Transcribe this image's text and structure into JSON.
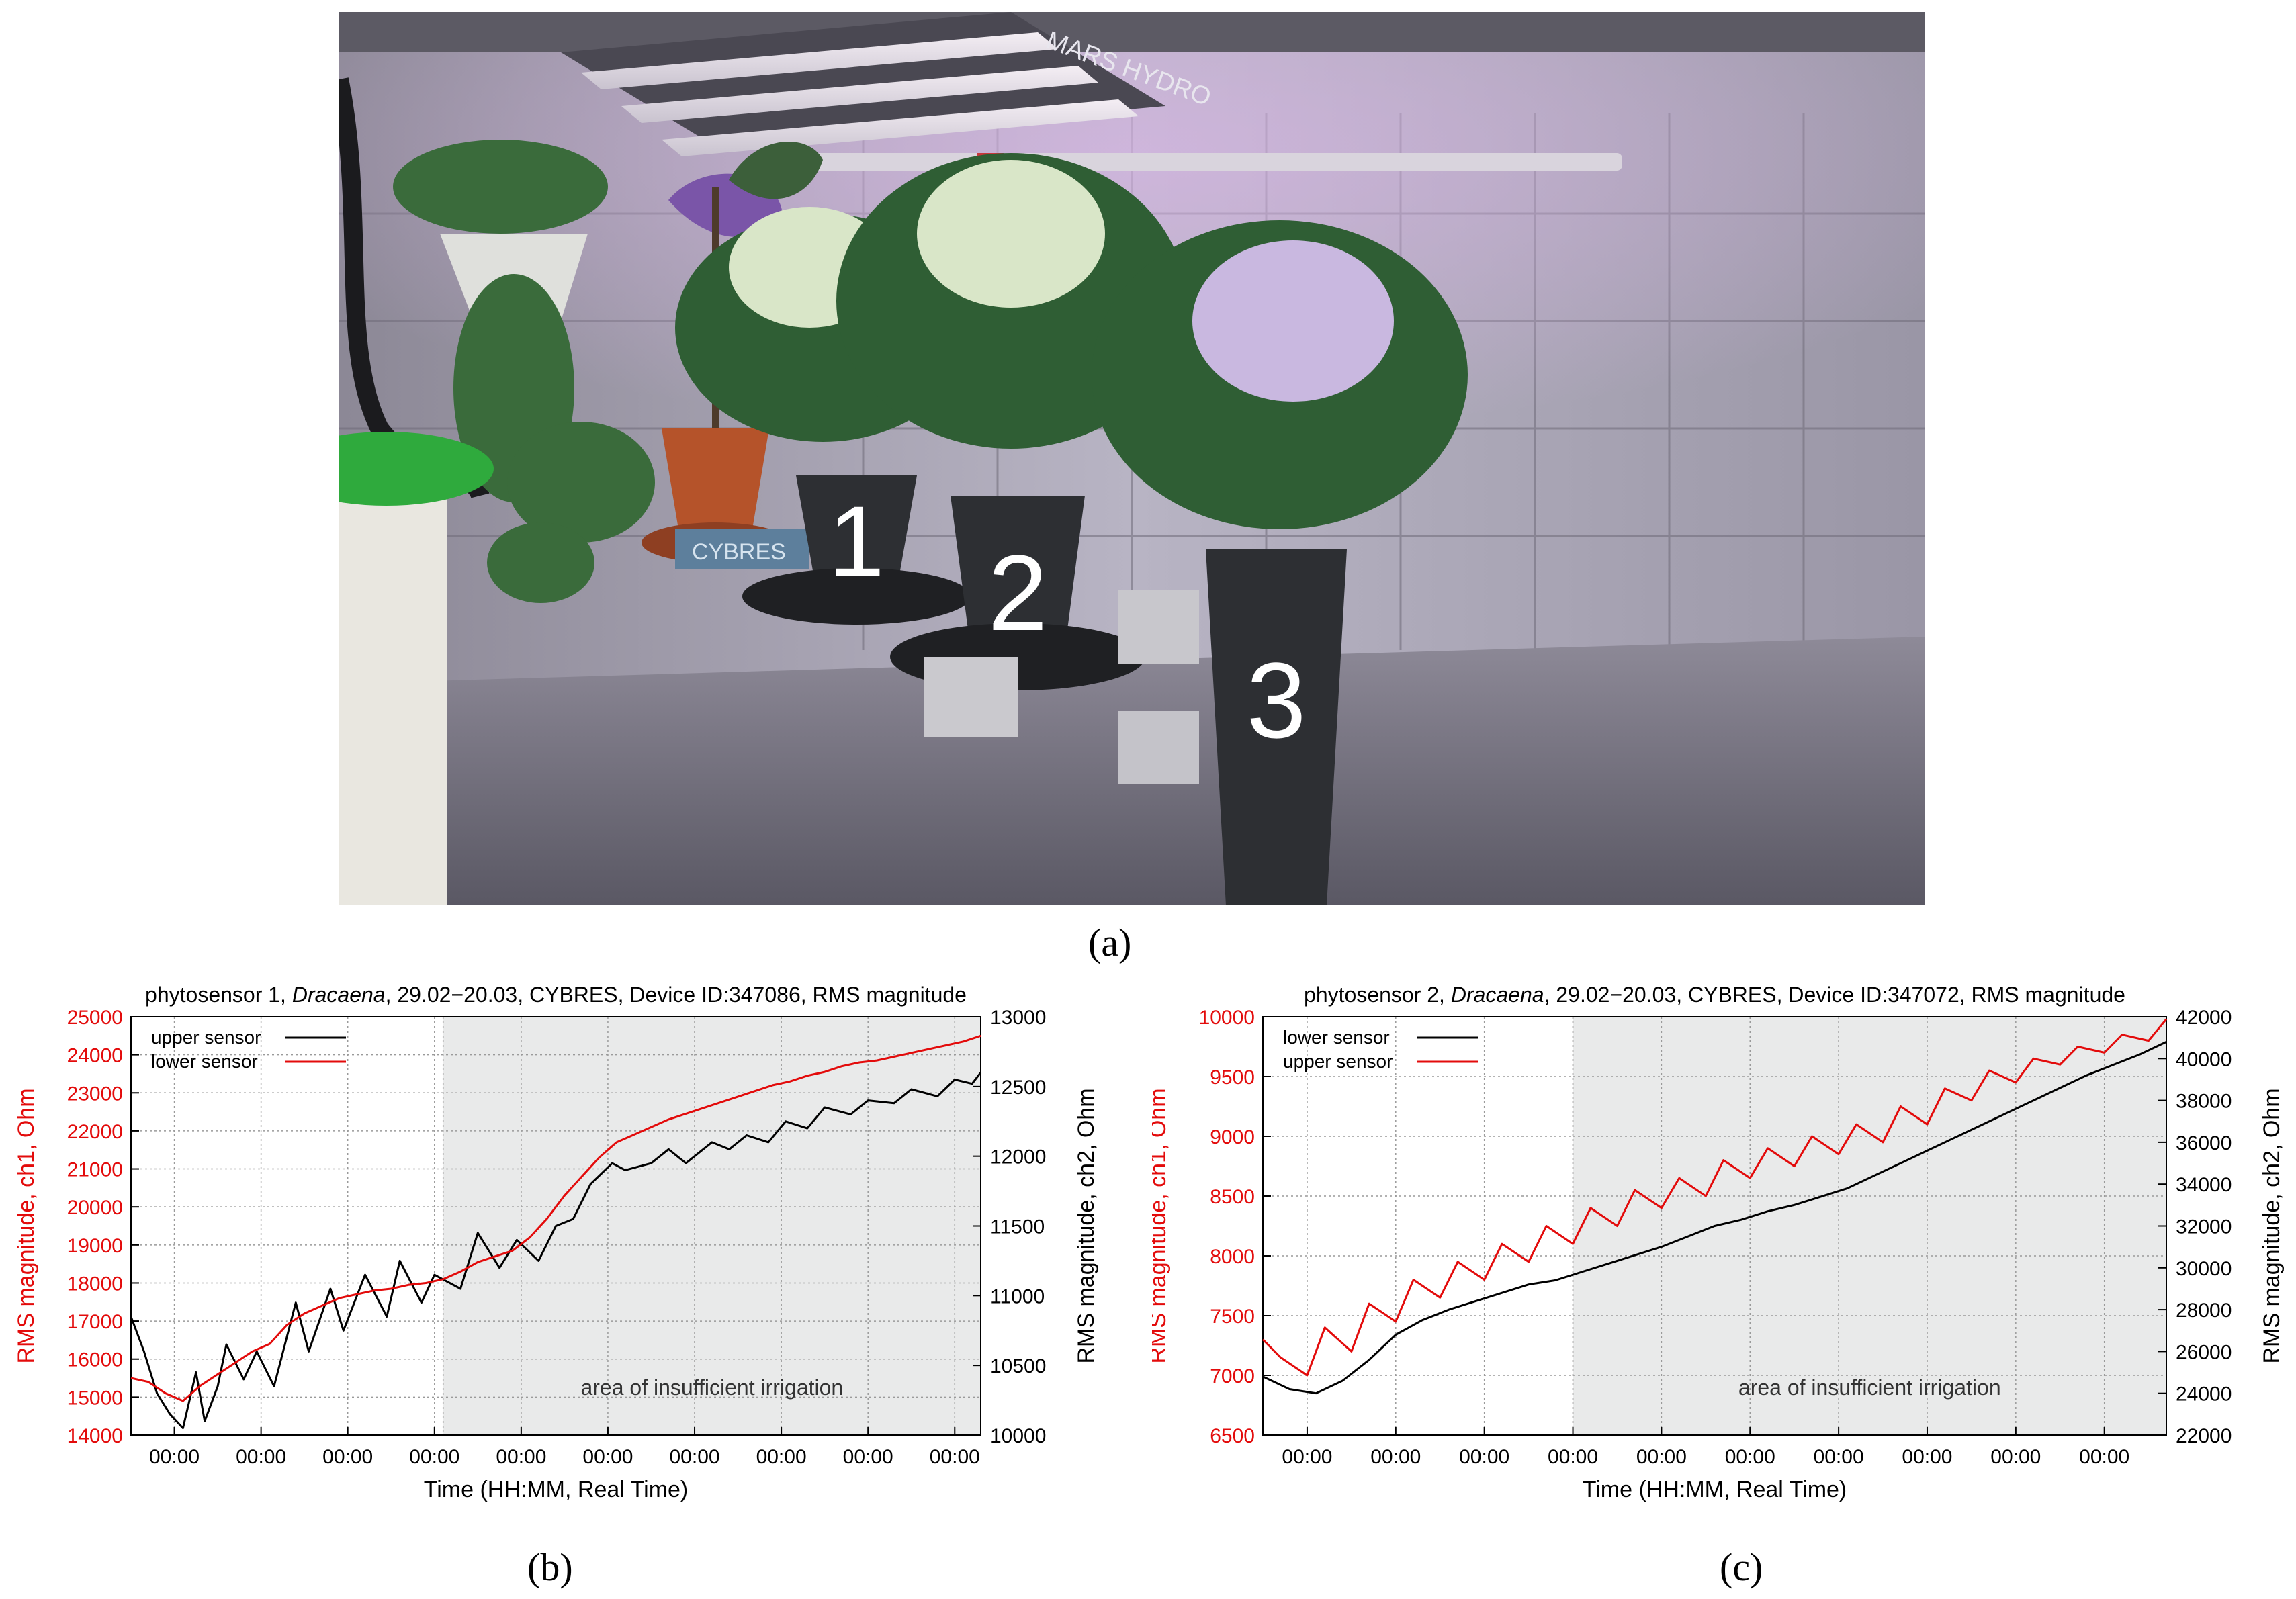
{
  "figure": {
    "photo": {
      "labels": [
        "1",
        "2",
        "3"
      ],
      "device_text": "CYBRES",
      "lamp_brand": "MARS HYDRO",
      "colors": {
        "wall": "#9c98a8",
        "floor": "#6f6c78",
        "leaf": "#2f5e34",
        "leaf_light": "#d9e6c8",
        "pot_dark": "#2d2f33",
        "pot_clay": "#b5532a",
        "bucket_lid": "#2faa3d"
      }
    },
    "captions": {
      "a": "(a)",
      "b": "(b)",
      "c": "(c)"
    }
  },
  "chart_data": [
    {
      "type": "line",
      "title_prefix": "phytosensor 1, ",
      "title_italic": "Dracaena",
      "title_suffix": ", 29.02−20.03, CYBRES, Device ID:347086, RMS magnitude",
      "xlabel": "Time (HH:MM, Real Time)",
      "ylabel_left": "RMS magnitude, ch1, Ohm",
      "ylabel_right": "RMS magnitude, ch2, Ohm",
      "x_tick_labels": [
        "00:00",
        "00:00",
        "00:00",
        "00:00",
        "00:00",
        "00:00",
        "00:00",
        "00:00",
        "00:00",
        "00:00"
      ],
      "x_ticks": [
        0.5,
        1.5,
        2.5,
        3.5,
        4.5,
        5.5,
        6.5,
        7.5,
        8.5,
        9.5
      ],
      "xlim": [
        0,
        9.8
      ],
      "ylim_left": [
        14000,
        25000
      ],
      "yticks_left": [
        14000,
        15000,
        16000,
        17000,
        18000,
        19000,
        20000,
        21000,
        22000,
        23000,
        24000,
        25000
      ],
      "ylim_right": [
        10000,
        13000
      ],
      "yticks_right": [
        10000,
        10500,
        11000,
        11500,
        12000,
        12500,
        13000
      ],
      "shaded_region": {
        "from": 3.6,
        "to": 9.8,
        "label": "area of insufficient irrigation",
        "color": "#e9eaea"
      },
      "grid": true,
      "legend_position": "top-left",
      "series": [
        {
          "name": "upper sensor",
          "axis": "right",
          "color": "#000000",
          "x": [
            0.0,
            0.15,
            0.3,
            0.45,
            0.6,
            0.75,
            0.85,
            1.0,
            1.1,
            1.3,
            1.45,
            1.65,
            1.9,
            2.05,
            2.3,
            2.45,
            2.7,
            2.95,
            3.1,
            3.35,
            3.5,
            3.8,
            4.0,
            4.25,
            4.45,
            4.7,
            4.9,
            5.1,
            5.3,
            5.55,
            5.7,
            6.0,
            6.2,
            6.4,
            6.7,
            6.9,
            7.1,
            7.35,
            7.55,
            7.8,
            8.0,
            8.3,
            8.5,
            8.8,
            9.0,
            9.3,
            9.5,
            9.7,
            9.8
          ],
          "values": [
            10850,
            10600,
            10300,
            10150,
            10050,
            10450,
            10100,
            10350,
            10650,
            10400,
            10600,
            10350,
            10950,
            10600,
            11050,
            10750,
            11150,
            10850,
            11250,
            10950,
            11150,
            11050,
            11450,
            11200,
            11400,
            11250,
            11500,
            11550,
            11800,
            11950,
            11900,
            11950,
            12050,
            11950,
            12100,
            12050,
            12150,
            12100,
            12250,
            12200,
            12350,
            12300,
            12400,
            12380,
            12480,
            12430,
            12550,
            12520,
            12600
          ]
        },
        {
          "name": "lower sensor",
          "axis": "left",
          "color": "#e30b0b",
          "x": [
            0.0,
            0.2,
            0.4,
            0.6,
            0.8,
            1.0,
            1.2,
            1.4,
            1.6,
            1.8,
            2.0,
            2.2,
            2.4,
            2.6,
            2.8,
            3.0,
            3.2,
            3.4,
            3.6,
            3.8,
            4.0,
            4.2,
            4.4,
            4.6,
            4.8,
            5.0,
            5.2,
            5.4,
            5.6,
            5.8,
            6.0,
            6.2,
            6.4,
            6.6,
            6.8,
            7.0,
            7.2,
            7.4,
            7.6,
            7.8,
            8.0,
            8.2,
            8.4,
            8.6,
            8.8,
            9.0,
            9.2,
            9.4,
            9.6,
            9.8
          ],
          "values": [
            15500,
            15400,
            15100,
            14900,
            15300,
            15600,
            15900,
            16200,
            16400,
            16900,
            17200,
            17400,
            17600,
            17700,
            17800,
            17850,
            17950,
            18000,
            18100,
            18300,
            18550,
            18700,
            18850,
            19200,
            19700,
            20300,
            20800,
            21300,
            21700,
            21900,
            22100,
            22300,
            22450,
            22600,
            22750,
            22900,
            23050,
            23200,
            23300,
            23450,
            23550,
            23700,
            23800,
            23850,
            23950,
            24050,
            24150,
            24250,
            24350,
            24500
          ]
        }
      ]
    },
    {
      "type": "line",
      "title_prefix": "phytosensor 2, ",
      "title_italic": "Dracaena",
      "title_suffix": ", 29.02−20.03, CYBRES, Device ID:347072, RMS magnitude",
      "xlabel": "Time (HH:MM, Real Time)",
      "ylabel_left": "RMS magnitude, ch1, Ohm",
      "ylabel_right": "RMS magnitude, ch2, Ohm",
      "x_tick_labels": [
        "00:00",
        "00:00",
        "00:00",
        "00:00",
        "00:00",
        "00:00",
        "00:00",
        "00:00",
        "00:00",
        "00:00"
      ],
      "x_ticks": [
        0.5,
        1.5,
        2.5,
        3.5,
        4.5,
        5.5,
        6.5,
        7.5,
        8.5,
        9.5
      ],
      "xlim": [
        0,
        10.2
      ],
      "ylim_left": [
        6500,
        10000
      ],
      "yticks_left": [
        6500,
        7000,
        7500,
        8000,
        8500,
        9000,
        9500,
        10000
      ],
      "ylim_right": [
        22000,
        42000
      ],
      "yticks_right": [
        22000,
        24000,
        26000,
        28000,
        30000,
        32000,
        34000,
        36000,
        38000,
        40000,
        42000
      ],
      "shaded_region": {
        "from": 3.5,
        "to": 10.2,
        "label": "area of insufficient irrigation",
        "color": "#e9eaea"
      },
      "grid": true,
      "legend_position": "top-left",
      "series": [
        {
          "name": "lower sensor",
          "axis": "right",
          "color": "#000000",
          "x": [
            0.0,
            0.3,
            0.6,
            0.9,
            1.2,
            1.5,
            1.8,
            2.1,
            2.4,
            2.7,
            3.0,
            3.3,
            3.6,
            3.9,
            4.2,
            4.5,
            4.8,
            5.1,
            5.4,
            5.7,
            6.0,
            6.3,
            6.6,
            6.9,
            7.2,
            7.5,
            7.8,
            8.1,
            8.4,
            8.7,
            9.0,
            9.3,
            9.6,
            9.9,
            10.2
          ],
          "values": [
            24800,
            24200,
            24000,
            24600,
            25600,
            26800,
            27500,
            28000,
            28400,
            28800,
            29200,
            29400,
            29800,
            30200,
            30600,
            31000,
            31500,
            32000,
            32300,
            32700,
            33000,
            33400,
            33800,
            34400,
            35000,
            35600,
            36200,
            36800,
            37400,
            38000,
            38600,
            39200,
            39700,
            40200,
            40800
          ]
        },
        {
          "name": "upper sensor",
          "axis": "left",
          "color": "#e30b0b",
          "x": [
            0.0,
            0.2,
            0.5,
            0.7,
            1.0,
            1.2,
            1.5,
            1.7,
            2.0,
            2.2,
            2.5,
            2.7,
            3.0,
            3.2,
            3.5,
            3.7,
            4.0,
            4.2,
            4.5,
            4.7,
            5.0,
            5.2,
            5.5,
            5.7,
            6.0,
            6.2,
            6.5,
            6.7,
            7.0,
            7.2,
            7.5,
            7.7,
            8.0,
            8.2,
            8.5,
            8.7,
            9.0,
            9.2,
            9.5,
            9.7,
            10.0,
            10.2
          ],
          "values": [
            7300,
            7150,
            7000,
            7400,
            7200,
            7600,
            7450,
            7800,
            7650,
            7950,
            7800,
            8100,
            7950,
            8250,
            8100,
            8400,
            8250,
            8550,
            8400,
            8650,
            8500,
            8800,
            8650,
            8900,
            8750,
            9000,
            8850,
            9100,
            8950,
            9250,
            9100,
            9400,
            9300,
            9550,
            9450,
            9650,
            9600,
            9750,
            9700,
            9850,
            9800,
            9980
          ]
        }
      ]
    }
  ]
}
